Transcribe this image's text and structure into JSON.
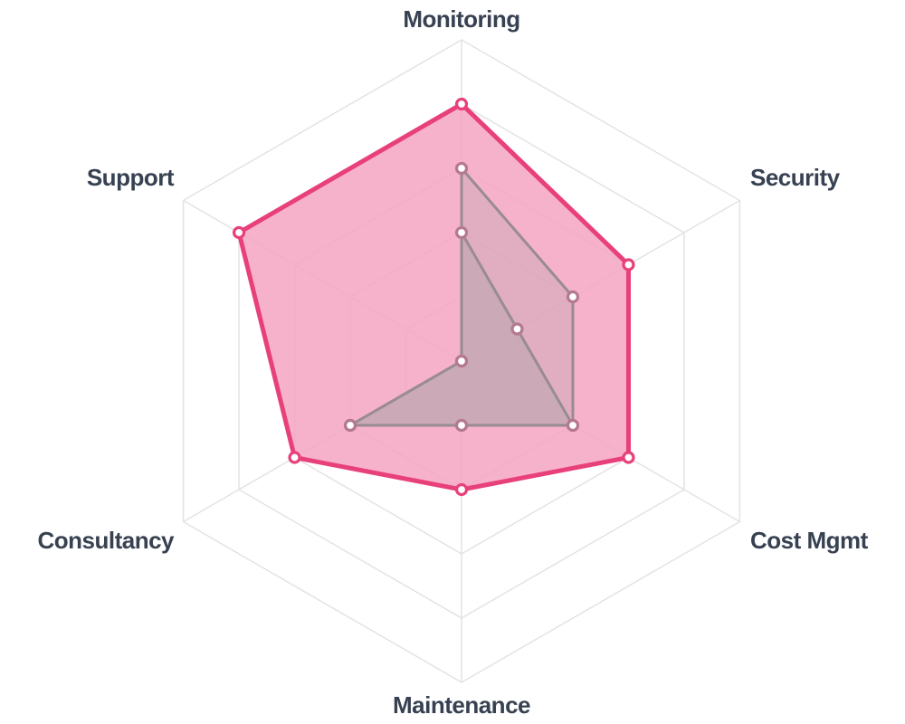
{
  "chart_data": {
    "type": "radar",
    "axes": [
      "Monitoring",
      "Security",
      "Cost Mgmt",
      "Maintenance",
      "Consultancy",
      "Support"
    ],
    "scale": {
      "min": 0,
      "max": 5,
      "rings": 5
    },
    "grid": true,
    "legend": "none",
    "series": [
      {
        "values": [
          2,
          1,
          2,
          1,
          2,
          0
        ],
        "fill": "#b9a5ae",
        "fill_opacity": 0.55,
        "stroke": "#998b93"
      },
      {
        "values": [
          3,
          2,
          2,
          1,
          2,
          0
        ],
        "fill": "#bfa6b2",
        "fill_opacity": 0.4,
        "stroke": "#998b93"
      },
      {
        "values": [
          4,
          3,
          3,
          2,
          3,
          4
        ],
        "fill": "#f6a5c2",
        "fill_opacity": 0.85,
        "stroke": "#e8407a"
      }
    ]
  }
}
